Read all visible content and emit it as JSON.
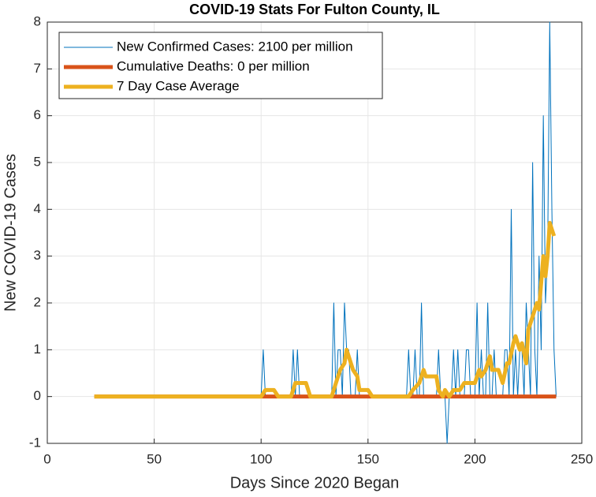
{
  "chart_data": {
    "type": "line",
    "title": "COVID-19 Stats For Fulton County, IL",
    "xlabel": "Days Since 2020 Began",
    "ylabel": "New COVID-19 Cases",
    "xlim": [
      0,
      250
    ],
    "xticks": [
      0,
      50,
      100,
      150,
      200,
      250
    ],
    "ylim": [
      -1,
      8
    ],
    "yticks": [
      -1,
      0,
      1,
      2,
      3,
      4,
      5,
      6,
      7,
      8
    ],
    "grid": true,
    "legend": "upper left",
    "series": [
      {
        "name": "New Confirmed Cases: 2100 per million",
        "color": "#0072bd",
        "width": 1,
        "x": [
          22,
          98,
          99,
          100,
          101,
          102,
          103,
          104,
          105,
          106,
          107,
          108,
          109,
          110,
          111,
          112,
          113,
          114,
          115,
          116,
          117,
          118,
          119,
          120,
          121,
          122,
          123,
          124,
          125,
          126,
          127,
          128,
          129,
          130,
          131,
          132,
          133,
          134,
          135,
          136,
          137,
          138,
          139,
          140,
          141,
          142,
          143,
          144,
          145,
          146,
          147,
          148,
          149,
          150,
          151,
          152,
          153,
          154,
          155,
          156,
          157,
          158,
          159,
          160,
          161,
          162,
          163,
          164,
          165,
          166,
          167,
          168,
          169,
          170,
          171,
          172,
          173,
          174,
          175,
          176,
          177,
          178,
          179,
          180,
          181,
          182,
          183,
          184,
          185,
          186,
          187,
          188,
          189,
          190,
          191,
          192,
          193,
          194,
          195,
          196,
          197,
          198,
          199,
          200,
          201,
          202,
          203,
          204,
          205,
          206,
          207,
          208,
          209,
          210,
          211,
          212,
          213,
          214,
          215,
          216,
          217,
          218,
          219,
          220,
          221,
          222,
          223,
          224,
          225,
          226,
          227,
          228,
          229,
          230,
          231,
          232,
          233,
          234,
          235,
          236,
          237,
          238
        ],
        "values": [
          0,
          0,
          0,
          0,
          1,
          0,
          0,
          0,
          0,
          0,
          0,
          0,
          0,
          0,
          0,
          0,
          0,
          0,
          1,
          0,
          1,
          0,
          0,
          0,
          0,
          0,
          0,
          0,
          0,
          0,
          0,
          0,
          0,
          0,
          0,
          0,
          0,
          2,
          0,
          1,
          1,
          0,
          2,
          1,
          1,
          0,
          0,
          0,
          1,
          0,
          0,
          0,
          0,
          0,
          0,
          0,
          0,
          0,
          0,
          0,
          0,
          0,
          0,
          0,
          0,
          0,
          0,
          0,
          0,
          0,
          0,
          0,
          1,
          0,
          0,
          1,
          0,
          0,
          2,
          0,
          0,
          0,
          0,
          0,
          0,
          0,
          1,
          0,
          0,
          0,
          -1,
          0,
          0,
          1,
          0,
          1,
          0,
          0,
          0,
          1,
          1,
          0,
          0,
          0,
          2,
          0,
          1,
          0,
          0,
          2,
          0,
          0,
          1,
          0,
          0,
          0,
          0,
          1,
          1,
          0,
          4,
          0,
          1,
          0,
          1,
          1,
          0,
          2,
          1,
          0,
          5,
          1,
          0,
          3,
          1,
          6,
          2,
          3,
          8,
          4,
          1,
          0
        ]
      },
      {
        "name": "Cumulative Deaths: 0 per million",
        "color": "#d95319",
        "width": 5,
        "x": [
          22,
          238
        ],
        "values": [
          0,
          0
        ]
      },
      {
        "name": "7 Day Case Average",
        "color": "#edb120",
        "width": 5,
        "x": [
          22,
          100,
          102,
          106,
          108,
          114,
          116,
          121,
          123,
          133,
          135,
          136,
          137,
          139,
          140,
          142,
          143,
          145,
          146,
          150,
          152,
          169,
          171,
          174,
          176,
          177,
          182,
          183,
          185,
          186,
          188,
          190,
          193,
          195,
          200,
          202,
          203,
          205,
          207,
          208,
          211,
          213,
          215,
          216,
          218,
          219,
          220,
          221,
          222,
          224,
          225,
          227,
          229,
          230,
          231,
          232,
          233,
          234,
          235,
          236,
          237
        ],
        "values": [
          0,
          0,
          0.14,
          0.14,
          0,
          0,
          0.29,
          0.29,
          0,
          0,
          0.29,
          0.43,
          0.57,
          0.71,
          1.0,
          0.71,
          0.57,
          0.43,
          0.14,
          0.14,
          0,
          0,
          0.14,
          0.29,
          0.57,
          0.43,
          0.43,
          0.14,
          0,
          0.14,
          0,
          0.14,
          0.14,
          0.29,
          0.29,
          0.57,
          0.43,
          0.57,
          0.86,
          0.57,
          0.57,
          0.29,
          0.71,
          0.71,
          1.14,
          1.29,
          1.14,
          1.0,
          1.14,
          0.71,
          1.43,
          1.71,
          2.0,
          1.86,
          2.43,
          3.0,
          2.57,
          3.0,
          3.71,
          3.57,
          3.43
        ]
      }
    ]
  }
}
